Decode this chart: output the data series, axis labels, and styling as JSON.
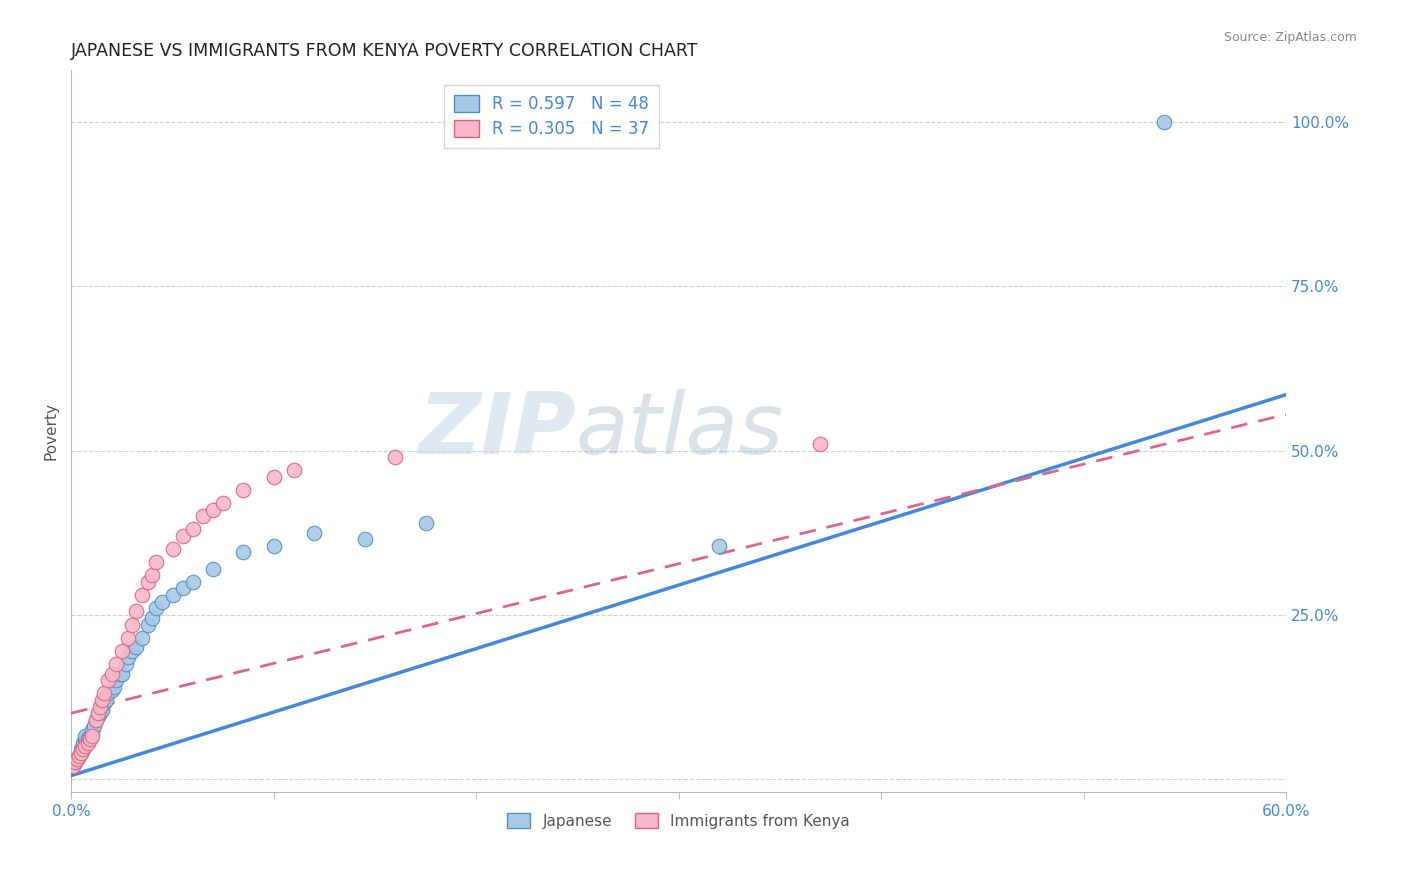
{
  "title": "JAPANESE VS IMMIGRANTS FROM KENYA POVERTY CORRELATION CHART",
  "source_text": "Source: ZipAtlas.com",
  "ylabel": "Poverty",
  "xlim": [
    0.0,
    0.6
  ],
  "ylim": [
    -0.02,
    1.08
  ],
  "ytick_values": [
    0.0,
    0.25,
    0.5,
    0.75,
    1.0
  ],
  "xtick_values": [
    0.0,
    0.1,
    0.2,
    0.3,
    0.4,
    0.5,
    0.6
  ],
  "watermark_zip": "ZIP",
  "watermark_atlas": "atlas",
  "background_color": "#ffffff",
  "grid_color": "#d0d0d0",
  "japanese_fill": "#a8c8e8",
  "kenya_fill": "#f8b8c8",
  "japanese_edge": "#5090c0",
  "kenya_edge": "#e06080",
  "japanese_line_color": "#4488dd",
  "kenya_line_color": "#dd6688",
  "R_japanese": 0.597,
  "N_japanese": 48,
  "R_kenya": 0.305,
  "N_kenya": 37,
  "legend_label_japanese": "Japanese",
  "legend_label_kenya": "Immigrants from Kenya",
  "japanese_x": [
    0.001,
    0.002,
    0.003,
    0.004,
    0.005,
    0.005,
    0.006,
    0.006,
    0.007,
    0.007,
    0.008,
    0.009,
    0.01,
    0.01,
    0.011,
    0.012,
    0.013,
    0.014,
    0.015,
    0.015,
    0.016,
    0.017,
    0.018,
    0.02,
    0.021,
    0.022,
    0.024,
    0.025,
    0.027,
    0.028,
    0.03,
    0.032,
    0.035,
    0.038,
    0.04,
    0.042,
    0.045,
    0.05,
    0.055,
    0.06,
    0.07,
    0.085,
    0.1,
    0.12,
    0.145,
    0.175,
    0.32,
    0.54
  ],
  "japanese_y": [
    0.02,
    0.025,
    0.03,
    0.035,
    0.04,
    0.045,
    0.05,
    0.055,
    0.06,
    0.065,
    0.06,
    0.065,
    0.07,
    0.075,
    0.08,
    0.09,
    0.095,
    0.1,
    0.105,
    0.115,
    0.115,
    0.12,
    0.13,
    0.135,
    0.14,
    0.15,
    0.16,
    0.16,
    0.175,
    0.185,
    0.195,
    0.2,
    0.215,
    0.235,
    0.245,
    0.26,
    0.27,
    0.28,
    0.29,
    0.3,
    0.32,
    0.345,
    0.355,
    0.375,
    0.365,
    0.39,
    0.355,
    1.0
  ],
  "kenya_x": [
    0.001,
    0.002,
    0.003,
    0.004,
    0.005,
    0.006,
    0.007,
    0.008,
    0.009,
    0.01,
    0.012,
    0.013,
    0.014,
    0.015,
    0.016,
    0.018,
    0.02,
    0.022,
    0.025,
    0.028,
    0.03,
    0.032,
    0.035,
    0.038,
    0.04,
    0.042,
    0.05,
    0.055,
    0.06,
    0.065,
    0.07,
    0.075,
    0.085,
    0.1,
    0.11,
    0.16,
    0.37
  ],
  "kenya_y": [
    0.02,
    0.025,
    0.03,
    0.035,
    0.04,
    0.045,
    0.05,
    0.055,
    0.06,
    0.065,
    0.09,
    0.1,
    0.11,
    0.12,
    0.13,
    0.15,
    0.16,
    0.175,
    0.195,
    0.215,
    0.235,
    0.255,
    0.28,
    0.3,
    0.31,
    0.33,
    0.35,
    0.37,
    0.38,
    0.4,
    0.41,
    0.42,
    0.44,
    0.46,
    0.47,
    0.49,
    0.51
  ],
  "line_j_x0": 0.0,
  "line_j_y0": 0.005,
  "line_j_x1": 0.6,
  "line_j_y1": 0.585,
  "line_k_x0": 0.0,
  "line_k_y0": 0.1,
  "line_k_x1": 0.6,
  "line_k_y1": 0.555
}
